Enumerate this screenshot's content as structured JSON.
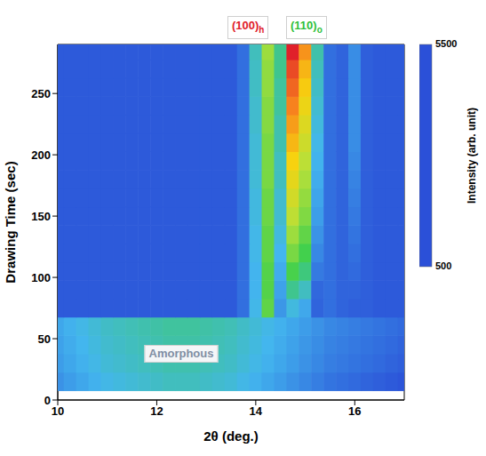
{
  "chart_data": {
    "type": "heatmap",
    "x_label": "2θ (deg.)",
    "y_label": "Drawing Time (sec)",
    "xlim": [
      10,
      17
    ],
    "xticks": [
      10,
      12,
      14,
      16
    ],
    "ylim": [
      0,
      290
    ],
    "yticks": [
      0,
      50,
      100,
      150,
      200,
      250
    ],
    "x": [
      10,
      10.25,
      10.5,
      10.75,
      11,
      11.25,
      11.5,
      11.75,
      12,
      12.25,
      12.5,
      12.75,
      13,
      13.25,
      13.5,
      13.75,
      14,
      14.25,
      14.5,
      14.75,
      15,
      15.25,
      15.5,
      15.75,
      16,
      16.25,
      16.5,
      16.75,
      17
    ],
    "y": [
      15,
      30,
      45,
      60,
      75,
      90,
      105,
      120,
      135,
      150,
      165,
      180,
      195,
      210,
      225,
      240,
      255,
      270,
      285
    ],
    "values": [
      [
        1150,
        1250,
        1350,
        1450,
        1550,
        1600,
        1650,
        1700,
        1750,
        1800,
        1800,
        1800,
        1750,
        1700,
        1650,
        1550,
        1450,
        1350,
        1250,
        1150,
        1050,
        950,
        850,
        800,
        750,
        700,
        650,
        600,
        550
      ],
      [
        1250,
        1350,
        1450,
        1550,
        1650,
        1700,
        1750,
        1800,
        1850,
        1900,
        1900,
        1900,
        1850,
        1800,
        1750,
        1650,
        1550,
        1450,
        1350,
        1250,
        1150,
        1050,
        950,
        900,
        850,
        800,
        750,
        700,
        650
      ],
      [
        1300,
        1400,
        1500,
        1600,
        1700,
        1750,
        1800,
        1850,
        1900,
        1950,
        1950,
        1950,
        1900,
        1850,
        1800,
        1700,
        1600,
        1500,
        1400,
        1300,
        1200,
        1100,
        1000,
        950,
        900,
        850,
        800,
        750,
        700
      ],
      [
        1350,
        1450,
        1550,
        1650,
        1750,
        1800,
        1850,
        1900,
        1950,
        2000,
        2000,
        2000,
        1950,
        1900,
        1850,
        1750,
        1650,
        1550,
        1450,
        1350,
        1250,
        1150,
        1050,
        1000,
        950,
        900,
        850,
        800,
        750
      ],
      [
        600,
        600,
        600,
        600,
        600,
        600,
        600,
        600,
        600,
        600,
        600,
        600,
        600,
        600,
        600,
        800,
        1540,
        2800,
        1200,
        1600,
        1360,
        700,
        800,
        700,
        650,
        650,
        600,
        600,
        600
      ],
      [
        600,
        600,
        600,
        600,
        600,
        600,
        600,
        600,
        600,
        600,
        600,
        600,
        600,
        600,
        600,
        800,
        1485,
        2700,
        1300,
        2100,
        1785,
        735,
        800,
        700,
        700,
        650,
        600,
        600,
        600
      ],
      [
        600,
        600,
        600,
        600,
        600,
        600,
        600,
        600,
        600,
        600,
        600,
        600,
        600,
        600,
        600,
        800,
        1485,
        2700,
        1400,
        2600,
        2210,
        910,
        800,
        700,
        750,
        650,
        600,
        600,
        600
      ],
      [
        600,
        600,
        600,
        600,
        600,
        600,
        600,
        600,
        600,
        600,
        600,
        600,
        600,
        600,
        600,
        800,
        1540,
        2800,
        1500,
        3000,
        2550,
        1050,
        800,
        700,
        800,
        650,
        600,
        600,
        600
      ],
      [
        600,
        600,
        600,
        600,
        600,
        600,
        600,
        600,
        600,
        600,
        600,
        600,
        600,
        600,
        600,
        800,
        1540,
        2800,
        1600,
        3300,
        2805,
        1155,
        800,
        700,
        850,
        650,
        600,
        600,
        600
      ],
      [
        600,
        600,
        600,
        600,
        600,
        600,
        600,
        600,
        600,
        600,
        600,
        600,
        600,
        600,
        600,
        800,
        1595,
        2900,
        1700,
        3600,
        3060,
        1260,
        800,
        700,
        900,
        650,
        600,
        600,
        600
      ],
      [
        600,
        600,
        600,
        600,
        600,
        600,
        600,
        600,
        600,
        600,
        600,
        600,
        600,
        600,
        600,
        800,
        1595,
        2900,
        1700,
        3800,
        3230,
        1330,
        800,
        700,
        950,
        650,
        600,
        600,
        600
      ],
      [
        600,
        600,
        600,
        600,
        600,
        600,
        600,
        600,
        600,
        600,
        600,
        600,
        600,
        600,
        600,
        800,
        1650,
        3000,
        1800,
        4000,
        3400,
        1400,
        800,
        700,
        1000,
        650,
        600,
        600,
        600
      ],
      [
        600,
        600,
        600,
        600,
        600,
        600,
        600,
        600,
        600,
        600,
        600,
        600,
        600,
        600,
        600,
        800,
        1650,
        3000,
        1800,
        4200,
        3570,
        1470,
        800,
        700,
        1050,
        650,
        600,
        600,
        600
      ],
      [
        600,
        600,
        600,
        600,
        600,
        600,
        600,
        600,
        600,
        600,
        600,
        600,
        600,
        600,
        600,
        800,
        1650,
        3000,
        1900,
        4400,
        3740,
        1540,
        800,
        700,
        1100,
        650,
        600,
        600,
        600
      ],
      [
        600,
        600,
        600,
        600,
        600,
        600,
        600,
        600,
        600,
        600,
        600,
        600,
        600,
        600,
        600,
        800,
        1705,
        3100,
        1900,
        4600,
        3910,
        1610,
        800,
        700,
        1100,
        650,
        600,
        600,
        600
      ],
      [
        600,
        600,
        600,
        600,
        600,
        600,
        600,
        600,
        600,
        600,
        600,
        600,
        600,
        600,
        600,
        800,
        1705,
        3100,
        2000,
        4800,
        4080,
        1680,
        800,
        700,
        1100,
        650,
        600,
        600,
        600
      ],
      [
        600,
        600,
        600,
        600,
        600,
        600,
        600,
        600,
        600,
        600,
        600,
        600,
        600,
        600,
        600,
        800,
        1760,
        3200,
        2000,
        5000,
        4250,
        1750,
        800,
        700,
        1100,
        650,
        600,
        600,
        600
      ],
      [
        600,
        600,
        600,
        600,
        600,
        600,
        600,
        600,
        600,
        600,
        600,
        600,
        600,
        600,
        600,
        800,
        1760,
        3200,
        2100,
        5200,
        4420,
        1820,
        800,
        700,
        1100,
        650,
        600,
        600,
        600
      ],
      [
        600,
        600,
        600,
        600,
        600,
        600,
        600,
        600,
        600,
        600,
        600,
        600,
        600,
        600,
        600,
        800,
        1815,
        3300,
        2100,
        5500,
        4675,
        1925,
        800,
        700,
        1100,
        650,
        600,
        600,
        600
      ]
    ],
    "colorbar": {
      "label": "Intensity (arb. unit)",
      "range": [
        500,
        5500
      ],
      "ticks": [
        500,
        5500
      ]
    },
    "annotations": [
      "(100)h",
      "(110)o",
      "Amorphous"
    ]
  }
}
